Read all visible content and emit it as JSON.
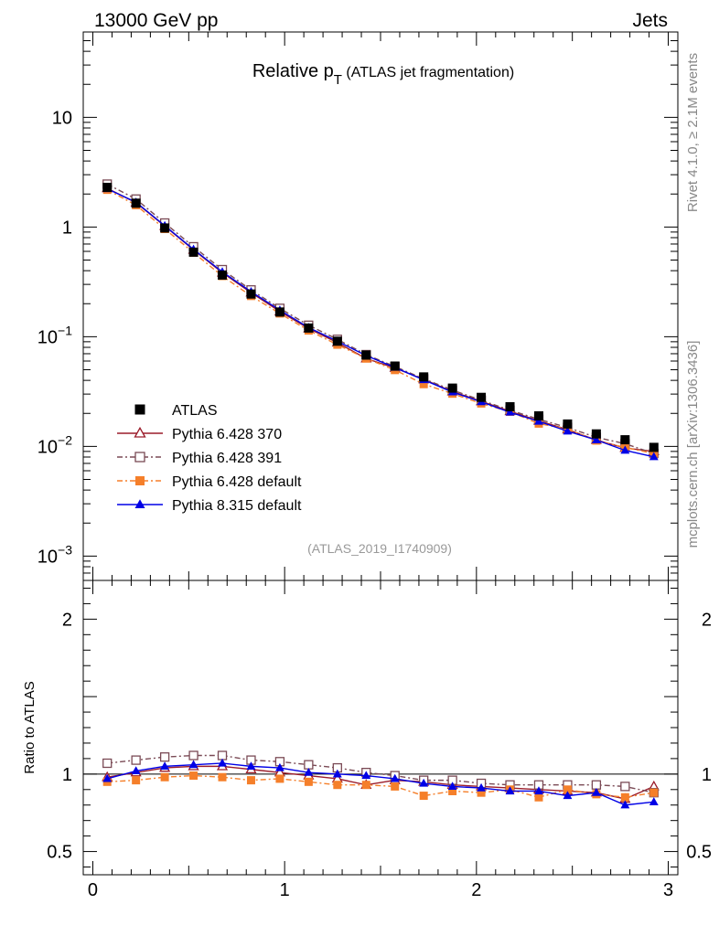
{
  "header": {
    "left": "13000 GeV pp",
    "right": "Jets"
  },
  "side_labels": {
    "rivet": "Rivet 4.1.0, ≥ 2.1M events",
    "mcplots": "mcplots.cern.ch [arXiv:1306.3436]"
  },
  "chart_data": {
    "type": "line",
    "title_main": "Relative p",
    "title_sub": "T",
    "title_rest": " (ATLAS jet fragmentation)",
    "analysis_id": "(ATLAS_2019_I1740909)",
    "x": [
      0.075,
      0.225,
      0.375,
      0.525,
      0.675,
      0.825,
      0.975,
      1.125,
      1.275,
      1.425,
      1.575,
      1.725,
      1.875,
      2.025,
      2.175,
      2.325,
      2.475,
      2.625,
      2.775,
      2.925
    ],
    "xlim": [
      -0.05,
      3.05
    ],
    "xticks": [
      {
        "v": 0,
        "label": "0"
      },
      {
        "v": 1,
        "label": "1"
      },
      {
        "v": 2,
        "label": "2"
      },
      {
        "v": 3,
        "label": "3"
      }
    ],
    "main": {
      "yscale": "log",
      "ylim": [
        0.0006,
        60
      ],
      "yticks": [
        {
          "v": 0.001,
          "base": "10",
          "exp": "−3"
        },
        {
          "v": 0.01,
          "base": "10",
          "exp": "−2"
        },
        {
          "v": 0.1,
          "base": "10",
          "exp": "−1"
        },
        {
          "v": 1,
          "base": "1",
          "exp": ""
        },
        {
          "v": 10,
          "base": "10",
          "exp": ""
        }
      ]
    },
    "ratio": {
      "ylabel": "Ratio to ATLAS",
      "ylim": [
        0.35,
        2.25
      ],
      "yticks": [
        {
          "v": 0.5,
          "label": "0.5"
        },
        {
          "v": 1,
          "label": "1"
        },
        {
          "v": 2,
          "label": "2"
        }
      ]
    },
    "series": [
      {
        "name": "ATLAS",
        "color": "#000000",
        "marker": "square-filled",
        "dash": "none",
        "values": [
          2.3,
          1.65,
          0.98,
          0.59,
          0.365,
          0.245,
          0.168,
          0.12,
          0.091,
          0.068,
          0.054,
          0.043,
          0.034,
          0.028,
          0.023,
          0.019,
          0.016,
          0.013,
          0.0115,
          0.0098
        ]
      },
      {
        "name": "Pythia 6.428 370",
        "color": "#9b1c2a",
        "marker": "triangle-open",
        "dash": "solid",
        "ratio": [
          0.98,
          1.01,
          1.04,
          1.05,
          1.05,
          1.03,
          1.01,
          0.99,
          0.97,
          0.93,
          0.96,
          0.95,
          0.93,
          0.92,
          0.91,
          0.9,
          0.89,
          0.88,
          0.84,
          0.92
        ]
      },
      {
        "name": "Pythia 6.428 391",
        "color": "#7a4a55",
        "marker": "square-open",
        "dash": "6,3,2,3",
        "ratio": [
          1.07,
          1.09,
          1.11,
          1.12,
          1.12,
          1.09,
          1.08,
          1.06,
          1.04,
          1.01,
          0.99,
          0.96,
          0.96,
          0.94,
          0.93,
          0.93,
          0.93,
          0.93,
          0.92,
          0.88
        ]
      },
      {
        "name": "Pythia 6.428 default",
        "color": "#f57f2a",
        "marker": "square-filled",
        "dash": "6,3,2,3",
        "ratio": [
          0.95,
          0.96,
          0.98,
          0.99,
          0.98,
          0.96,
          0.97,
          0.95,
          0.93,
          0.93,
          0.92,
          0.86,
          0.89,
          0.88,
          0.9,
          0.85,
          0.9,
          0.87,
          0.85,
          0.88
        ]
      },
      {
        "name": "Pythia 8.315 default",
        "color": "#0000e6",
        "marker": "triangle-filled",
        "dash": "solid",
        "ratio": [
          0.97,
          1.02,
          1.05,
          1.06,
          1.07,
          1.05,
          1.04,
          1.01,
          1.0,
          0.99,
          0.97,
          0.94,
          0.92,
          0.91,
          0.89,
          0.89,
          0.86,
          0.88,
          0.8,
          0.82
        ]
      }
    ]
  }
}
